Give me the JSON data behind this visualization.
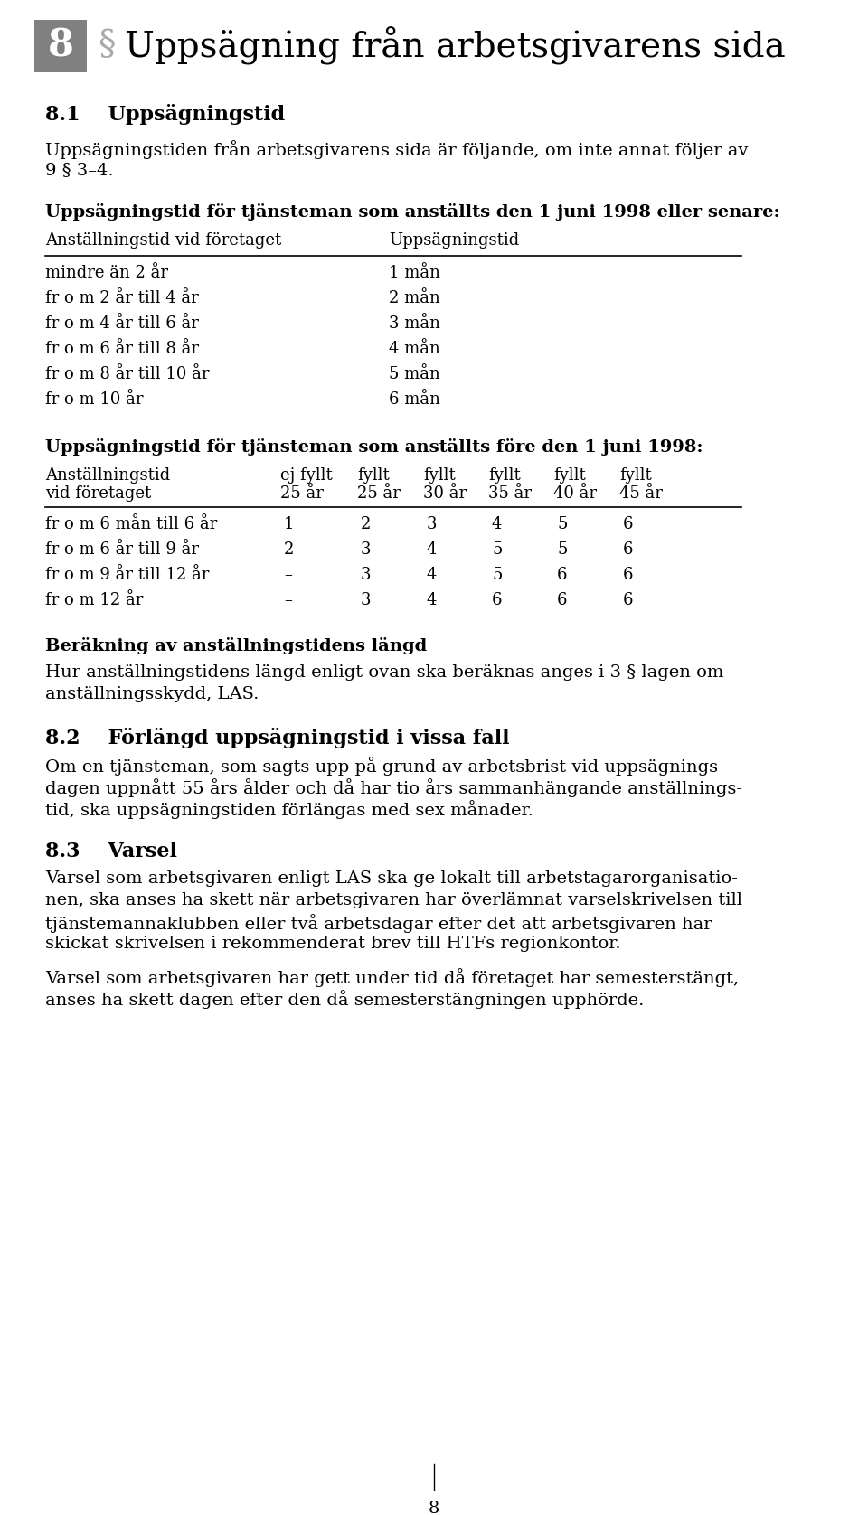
{
  "bg_color": "#ffffff",
  "text_color": "#000000",
  "header_box_color": "#808080",
  "page_number": "8",
  "chapter_header": "Uppsägning från arbetsgivarens sida",
  "section_number_box": "8",
  "section_symbol": "§",
  "sub_heading_1": "8.1    Uppsägningstid",
  "para_1_lines": [
    "Uppsägningstiden från arbetsgivarens sida är följande, om inte annat följer av",
    "9 § 3–4."
  ],
  "table1_heading": "Uppsägningstid för tjänsteman som anställts den 1 juni 1998 eller senare:",
  "table1_col1_header": "Anställningstid vid företaget",
  "table1_col2_header": "Uppsägningstid",
  "table1_rows": [
    [
      "mindre än 2 år",
      "1 mån"
    ],
    [
      "fr o m 2 år till 4 år",
      "2 mån"
    ],
    [
      "fr o m 4 år till 6 år",
      "3 mån"
    ],
    [
      "fr o m 6 år till 8 år",
      "4 mån"
    ],
    [
      "fr o m 8 år till 10 år",
      "5 mån"
    ],
    [
      "fr o m 10 år",
      "6 mån"
    ]
  ],
  "table2_heading": "Uppsägningstid för tjänsteman som anställts före den 1 juni 1998:",
  "table2_col1_header_line1": "Anställningstid",
  "table2_col1_header_line2": "vid företaget",
  "table2_col_headers": [
    "ej fyllt\n25 år",
    "fyllt\n25 år",
    "fyllt\n30 år",
    "fyllt\n35 år",
    "fyllt\n40 år",
    "fyllt\n45 år"
  ],
  "table2_rows": [
    [
      "fr o m 6 mån till 6 år",
      "1",
      "2",
      "3",
      "4",
      "5",
      "6"
    ],
    [
      "fr o m 6 år till 9 år",
      "2",
      "3",
      "4",
      "5",
      "5",
      "6"
    ],
    [
      "fr o m 9 år till 12 år",
      "–",
      "3",
      "4",
      "5",
      "6",
      "6"
    ],
    [
      "fr o m 12 år",
      "–",
      "3",
      "4",
      "6",
      "6",
      "6"
    ]
  ],
  "beraekning_heading": "Beräkning av anställningstidens längd",
  "beraekning_lines": [
    "Hur anställningstidens längd enligt ovan ska beräknas anges i 3 § lagen om",
    "anställningsskydd, LAS."
  ],
  "sub_heading_2": "8.2    Förlängd uppsägningstid i vissa fall",
  "para_2_lines": [
    "Om en tjänsteman, som sagts upp på grund av arbetsbrist vid uppsägnings-",
    "dagen uppnått 55 års ålder och då har tio års sammanhängande anställnings-",
    "tid, ska uppsägningstiden förlängas med sex månader."
  ],
  "sub_heading_3": "8.3    Varsel",
  "para_3a_lines": [
    "Varsel som arbetsgivaren enligt LAS ska ge lokalt till arbetstagarorganisatio-",
    "nen, ska anses ha skett när arbetsgivaren har överlämnat varselskrivelsen till",
    "tjänstemannaklubben eller två arbetsdagar efter det att arbetsgivaren har",
    "skickat skrivelsen i rekommenderat brev till HTFs regionkontor."
  ],
  "para_3b_lines": [
    "Varsel som arbetsgivaren har gett under tid då företaget har semesterstängt,",
    "anses ha skett dagen efter den då semesterstängningen upphörde."
  ]
}
